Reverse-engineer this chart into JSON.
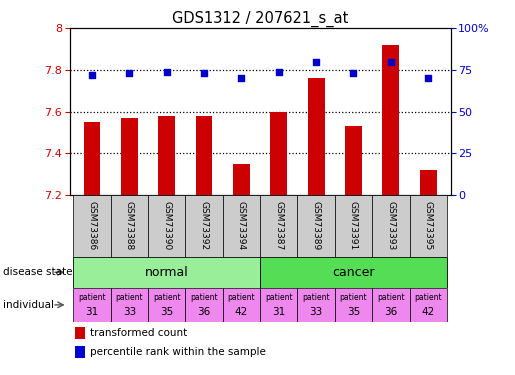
{
  "title": "GDS1312 / 207621_s_at",
  "samples": [
    "GSM73386",
    "GSM73388",
    "GSM73390",
    "GSM73392",
    "GSM73394",
    "GSM73387",
    "GSM73389",
    "GSM73391",
    "GSM73393",
    "GSM73395"
  ],
  "transformed_count": [
    7.55,
    7.57,
    7.58,
    7.58,
    7.35,
    7.6,
    7.76,
    7.53,
    7.92,
    7.32
  ],
  "percentile_rank": [
    72,
    73,
    74,
    73,
    70,
    74,
    80,
    73,
    80,
    70
  ],
  "ylim_left": [
    7.2,
    8.0
  ],
  "ylim_right": [
    0,
    100
  ],
  "yticks_left": [
    7.2,
    7.4,
    7.6,
    7.8,
    8.0
  ],
  "ytick_labels_left": [
    "7.2",
    "7.4",
    "7.6",
    "7.8",
    "8"
  ],
  "yticks_right": [
    0,
    25,
    50,
    75,
    100
  ],
  "ytick_labels_right": [
    "0",
    "25",
    "50",
    "75",
    "100%"
  ],
  "disease_state": [
    "normal",
    "normal",
    "normal",
    "normal",
    "normal",
    "cancer",
    "cancer",
    "cancer",
    "cancer",
    "cancer"
  ],
  "individuals": [
    "31",
    "33",
    "35",
    "36",
    "42",
    "31",
    "33",
    "35",
    "36",
    "42"
  ],
  "bar_color": "#cc0000",
  "dot_color": "#0000cc",
  "normal_color": "#99ee99",
  "cancer_color": "#55dd55",
  "individual_color": "#ee88ee",
  "sample_box_color": "#cccccc",
  "left_label_color": "#cc0000",
  "right_label_color": "#0000cc"
}
